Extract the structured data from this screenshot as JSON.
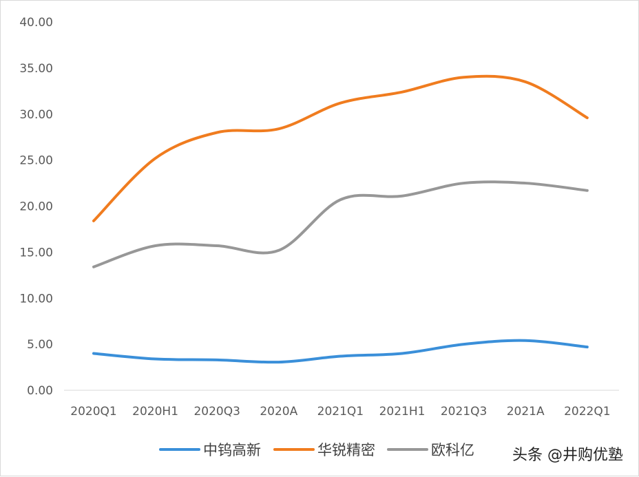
{
  "chart_data": {
    "type": "line",
    "categories": [
      "2020Q1",
      "2020H1",
      "2020Q3",
      "2020A",
      "2021Q1",
      "2021H1",
      "2021Q3",
      "2021A",
      "2022Q1"
    ],
    "ylim": [
      0,
      40
    ],
    "yticks": [
      "0.00",
      "5.00",
      "10.00",
      "15.00",
      "20.00",
      "25.00",
      "30.00",
      "35.00",
      "40.00"
    ],
    "grid": false,
    "legend_position": "bottom",
    "series": [
      {
        "name": "中钨高新",
        "color": "#3a8fd9",
        "values": [
          4.0,
          3.4,
          3.3,
          3.06,
          3.7,
          4.0,
          5.0,
          5.4,
          4.7
        ]
      },
      {
        "name": "华锐精密",
        "color": "#f07c1f",
        "values": [
          18.4,
          25.2,
          28.0,
          28.4,
          31.2,
          32.4,
          34.0,
          33.5,
          29.6
        ]
      },
      {
        "name": "欧科亿",
        "color": "#979797",
        "values": [
          13.4,
          15.7,
          15.7,
          15.2,
          20.7,
          21.1,
          22.5,
          22.5,
          21.7
        ]
      }
    ]
  },
  "watermark": "头条 @井购优塾"
}
